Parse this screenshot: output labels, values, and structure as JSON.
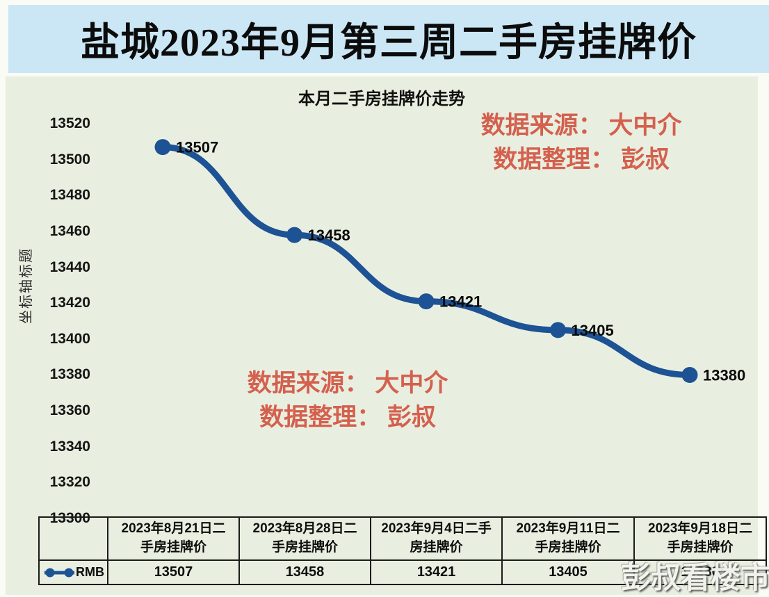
{
  "banner": {
    "title": "盐城2023年9月第三周二手房挂牌价"
  },
  "chart": {
    "title": "本月二手房挂牌价走势",
    "y_axis_title": "坐标轴标题",
    "legend_label": "RMB"
  },
  "watermark": {
    "source": "数据来源： 大中介",
    "editor": "数据整理： 彭叔",
    "brand": "彭叔看楼市"
  },
  "chart_data": {
    "type": "line",
    "title": "本月二手房挂牌价走势",
    "ylabel": "坐标轴标题",
    "categories": [
      "2023年8月21日二手房挂牌价",
      "2023年8月28日二手房挂牌价",
      "2023年9月4日二手房挂牌价",
      "2023年9月11日二手房挂牌价",
      "2023年9月18日二手房挂牌价"
    ],
    "series": [
      {
        "name": "RMB",
        "values": [
          13507,
          13458,
          13421,
          13405,
          13380
        ]
      }
    ],
    "ylim": [
      13300,
      13520
    ],
    "ytick_step": 20,
    "grid": false,
    "legend_position": "bottom-left",
    "data_labels": true,
    "line_color": "#1d5295"
  },
  "table": {
    "headers": [
      "2023年8月21日二\n手房挂牌价",
      "2023年8月28日二\n手房挂牌价",
      "2023年9月4日二手\n房挂牌价",
      "2023年9月11日二\n手房挂牌价",
      "2023年9月18日二\n手房挂牌价"
    ],
    "values": [
      "13507",
      "13458",
      "13421",
      "13405",
      "13380"
    ]
  },
  "colors": {
    "banner_bg": "#cbe7f5",
    "panel_bg": "#e9efe0",
    "line": "#1d5295",
    "watermark_red": "#d4604e",
    "table_border": "#1b1b1b"
  }
}
